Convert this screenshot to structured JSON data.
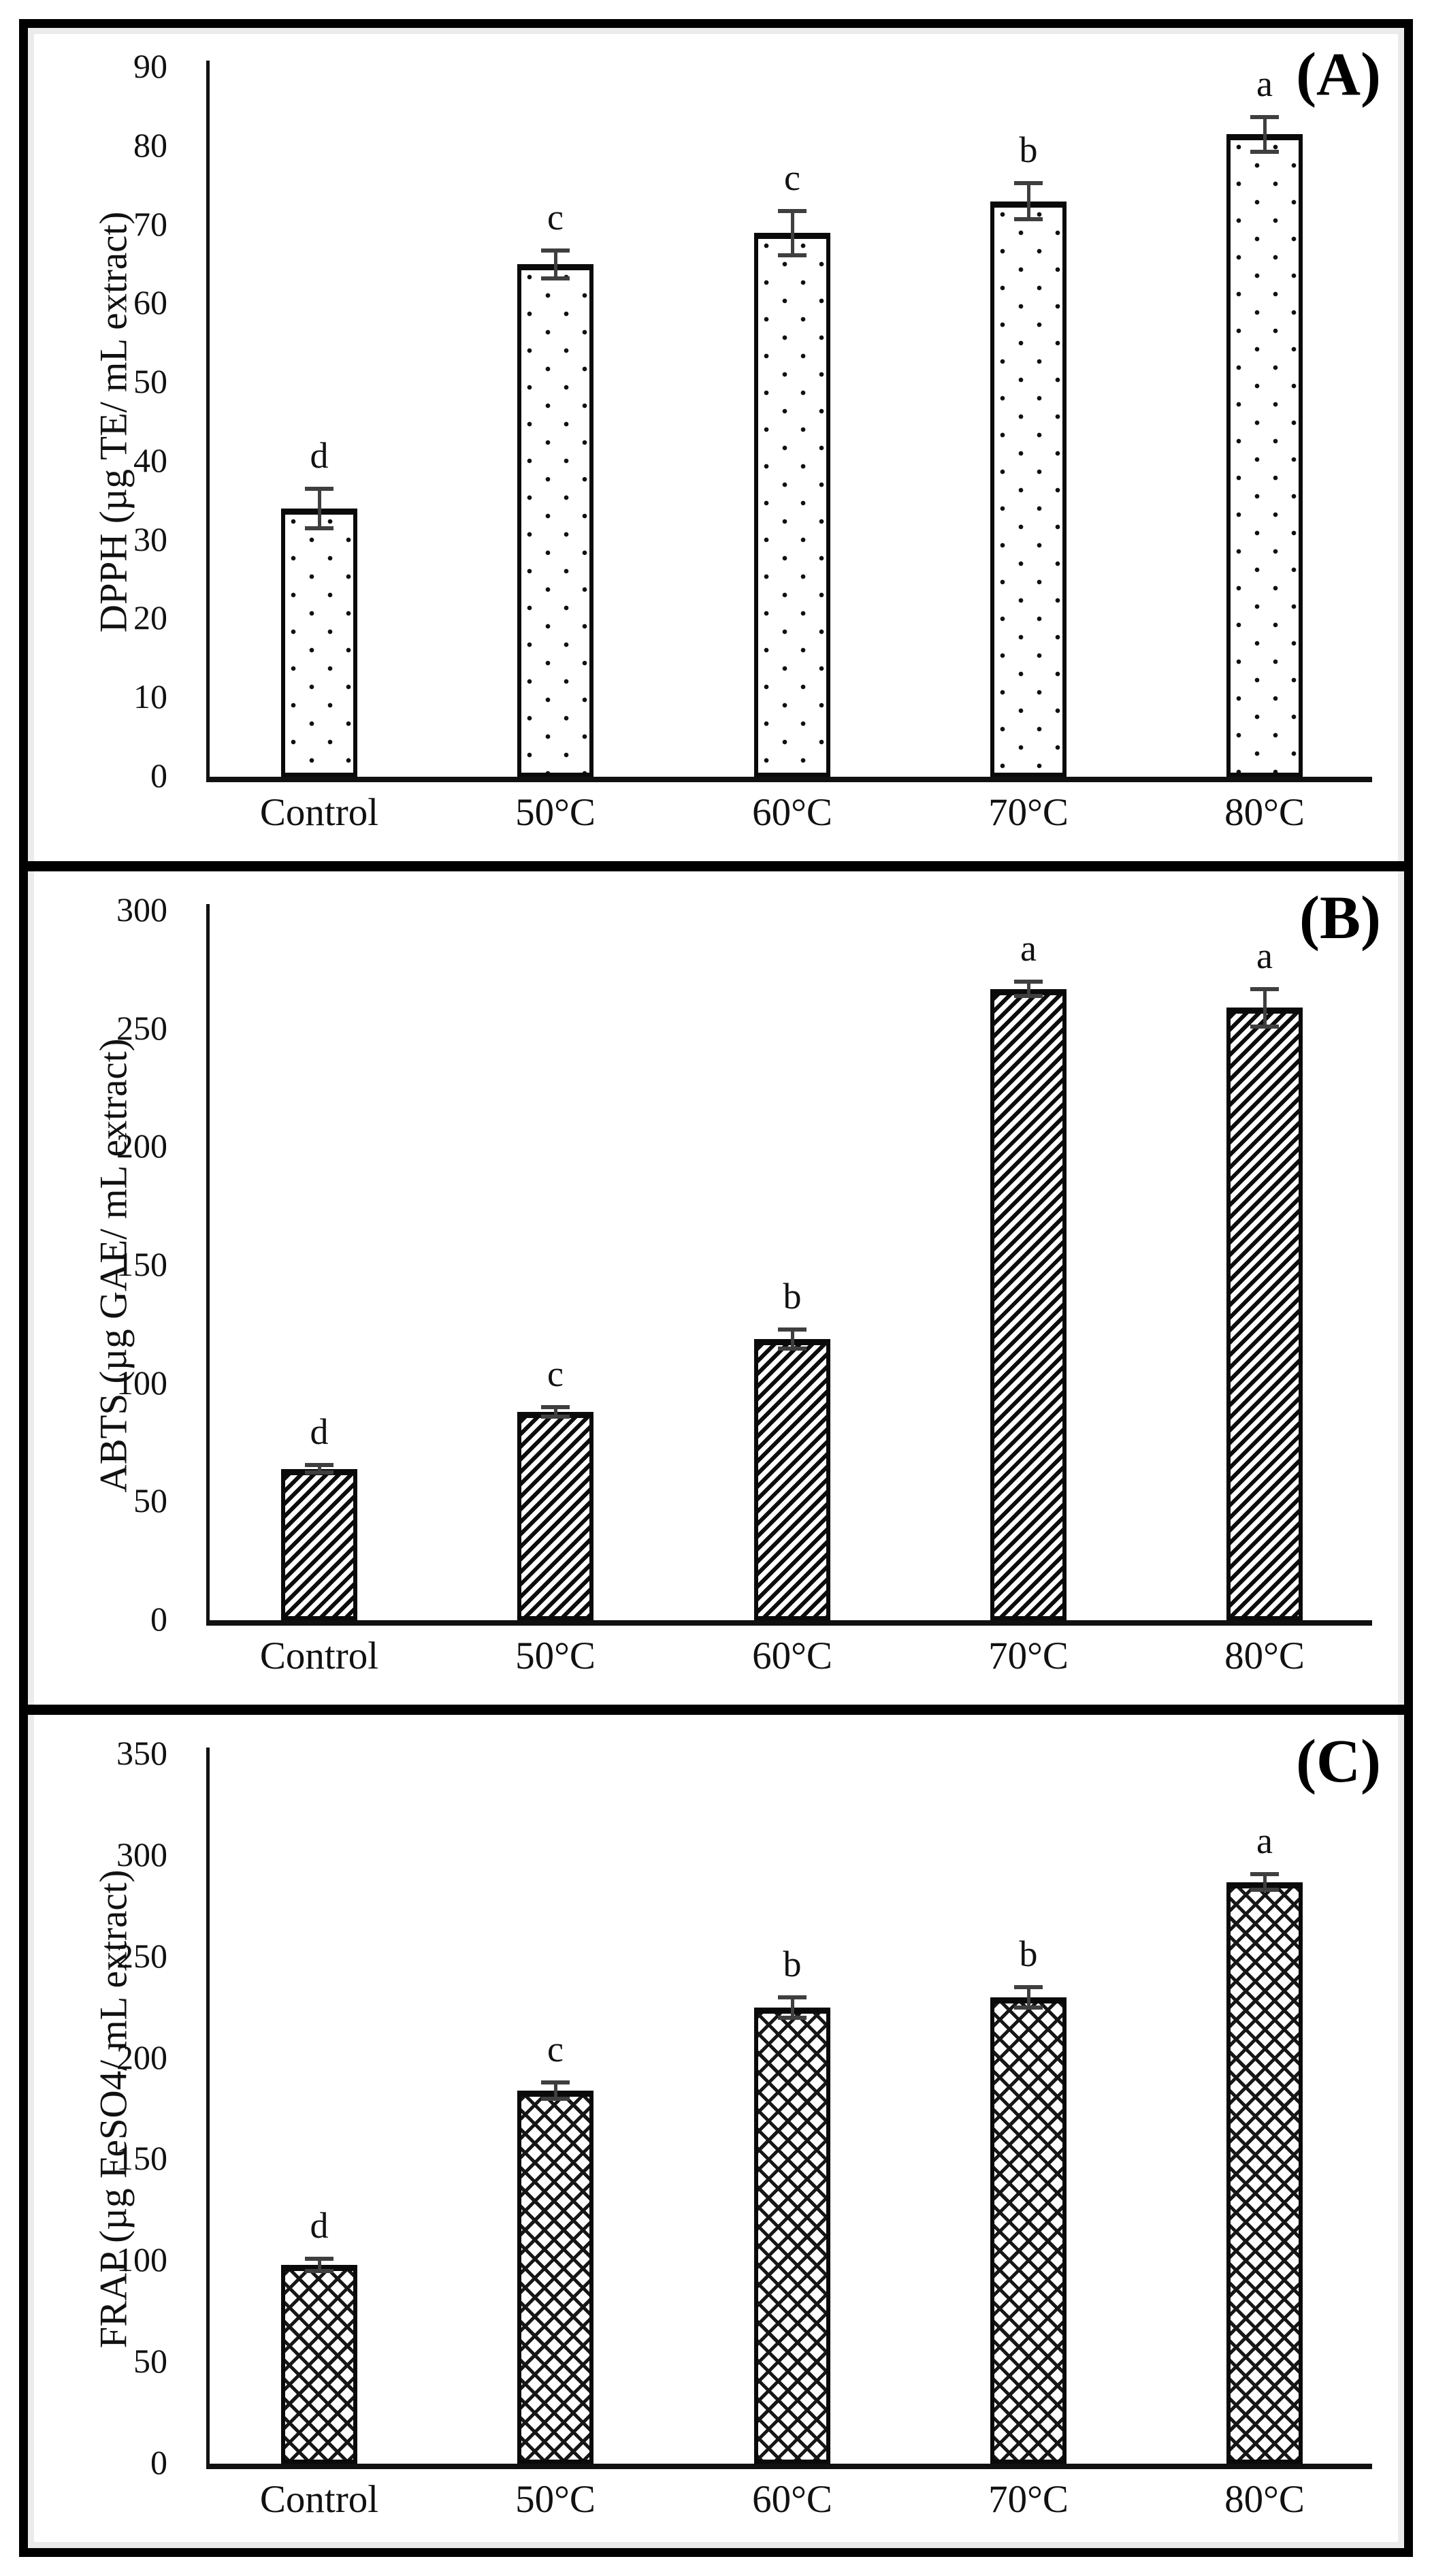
{
  "colors": {
    "frame": "#000000",
    "axis": "#111111",
    "bar_fill": "#ffffff",
    "bar_border": "#0a0a0a",
    "error_bar": "#3f3f3f",
    "inner_margin": "#ebebeb",
    "text": "#111111"
  },
  "chart_data": [
    {
      "type": "bar",
      "title": "(A)",
      "ylabel": "DPPH (µg TE/ mL extract)",
      "xlabel": "",
      "categories": [
        "Control",
        "50°C",
        "60°C",
        "70°C",
        "80°C"
      ],
      "values": [
        34,
        65,
        69,
        73,
        81.5
      ],
      "errors": [
        2.5,
        1.8,
        2.8,
        2.3,
        2.2
      ],
      "sig_letters": [
        "d",
        "c",
        "c",
        "b",
        "a"
      ],
      "ylim": [
        0,
        90
      ],
      "ytick_step": 10,
      "yticks": [
        "90",
        "80",
        "70",
        "60",
        "50",
        "40",
        "30",
        "20",
        "10",
        "0"
      ],
      "bar_pattern": "dots",
      "grid": false,
      "legend": "none"
    },
    {
      "type": "bar",
      "title": "(B)",
      "ylabel": "ABTS (µg GAE/ mL extract)",
      "xlabel": "",
      "categories": [
        "Control",
        "50°C",
        "60°C",
        "70°C",
        "80°C"
      ],
      "values": [
        64,
        88,
        119,
        267,
        259
      ],
      "errors": [
        1.5,
        2,
        4,
        3,
        8
      ],
      "sig_letters": [
        "d",
        "c",
        "b",
        "a",
        "a"
      ],
      "ylim": [
        0,
        300
      ],
      "ytick_step": 50,
      "yticks": [
        "300",
        "250",
        "200",
        "150",
        "100",
        "50",
        "0"
      ],
      "bar_pattern": "diag",
      "grid": false,
      "legend": "none"
    },
    {
      "type": "bar",
      "title": "(C)",
      "ylabel": "FRAP (µg FeSO4/ mL extract)",
      "xlabel": "",
      "categories": [
        "Control",
        "50°C",
        "60°C",
        "70°C",
        "80°C"
      ],
      "values": [
        98,
        184,
        225,
        230,
        287
      ],
      "errors": [
        3,
        4,
        5,
        5,
        4
      ],
      "sig_letters": [
        "d",
        "c",
        "b",
        "b",
        "a"
      ],
      "ylim": [
        0,
        350
      ],
      "ytick_step": 50,
      "yticks": [
        "350",
        "300",
        "250",
        "200",
        "150",
        "100",
        "50",
        "0"
      ],
      "bar_pattern": "cross",
      "grid": false,
      "legend": "none"
    }
  ]
}
